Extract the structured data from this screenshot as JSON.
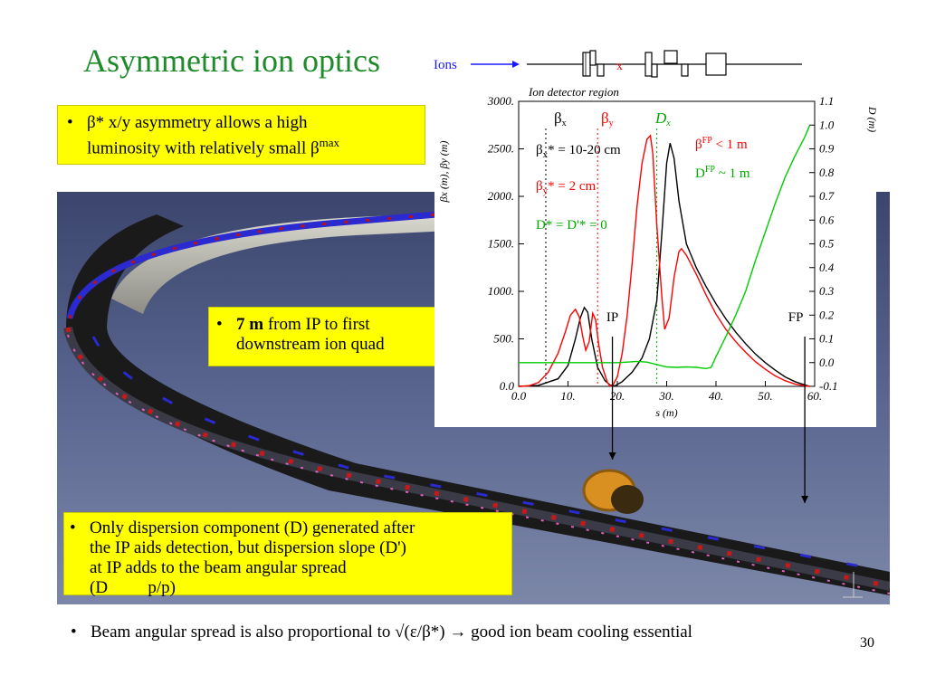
{
  "slide": {
    "title": "Asymmetric ion optics",
    "page_number": "30"
  },
  "lattice": {
    "ions_label": "Ions",
    "ip_marker": "x"
  },
  "bullets": {
    "box1_line1": "β* x/y asymmetry allows a high",
    "box1_line2_pre": "luminosity with relatively small β",
    "box1_sup": "max",
    "box2_bold": "7 m",
    "box2_line1_rest": " from IP to first",
    "box2_line2": "downstream ion quad",
    "box3_line1": "Only dispersion component (D) generated after",
    "box3_line2": "the IP aids detection, but dispersion slope (D')",
    "box3_line3": "at IP adds to the beam angular spread",
    "box3_line4": "(D\u0000\u0000\u0000p/p)",
    "footer": "Beam angular spread is also proportional to √(ε/β*) → good ion beam cooling essential"
  },
  "chart_data": {
    "type": "line",
    "header_label": "Ion detector region",
    "xlabel": "s (m)",
    "ylabel_left": "βx (m), βy (m)",
    "ylabel_right": "D (m)",
    "xlim": [
      0,
      60
    ],
    "ylim_left": [
      0,
      3000
    ],
    "ylim_right": [
      -0.1,
      1.1
    ],
    "x_ticks": [
      "0.0",
      "10.",
      "20.",
      "30.",
      "40.",
      "50.",
      "60."
    ],
    "y_left_ticks": [
      "0.0",
      "500.",
      "1000.",
      "1500.",
      "2000.",
      "2500.",
      "3000."
    ],
    "y_right_ticks": [
      "-0.1",
      "0.0",
      "0.1",
      "0.2",
      "0.3",
      "0.4",
      "0.5",
      "0.6",
      "0.7",
      "0.8",
      "0.9",
      "1.0",
      "1.1"
    ],
    "legend": [
      {
        "label": "β",
        "sub": "x",
        "color": "#000000"
      },
      {
        "label": "β",
        "sub": "y",
        "color": "#ff0000"
      },
      {
        "label": "D",
        "sub": "x",
        "color": "#00aa00"
      }
    ],
    "annotations": {
      "betax_star_pre": "β",
      "betax_star_sub": "x",
      "betax_star_rest": "* = 10-20 cm",
      "betay_star_pre": "β",
      "betay_star_sub": "y",
      "betay_star_rest": "* = 2 cm",
      "d_star": "D* = D'* = 0",
      "betafp_pre": "β",
      "betafp_sup": "FP",
      "betafp_rest": " < 1 m",
      "dfp_pre": "D",
      "dfp_sup": "FP",
      "dfp_rest": " ~ 1 m",
      "ip_label": "IP",
      "fp_label": "FP"
    },
    "colors": {
      "beta_x": "#000000",
      "beta_y": "#ff0000",
      "dispersion": "#00cc00"
    },
    "series": [
      {
        "name": "βx",
        "axis": "left",
        "x": [
          0,
          4,
          8,
          10,
          11.5,
          12.5,
          13.3,
          14,
          14.8,
          16,
          17.5,
          18.5,
          19.5,
          21,
          23,
          25,
          26.5,
          28,
          29,
          30,
          30.7,
          31.5,
          32.5,
          34,
          36,
          38,
          40,
          42,
          44,
          46,
          48,
          50,
          52,
          54,
          56,
          58,
          59
        ],
        "y": [
          0,
          10,
          80,
          220,
          500,
          720,
          830,
          780,
          500,
          200,
          60,
          15,
          5,
          50,
          150,
          300,
          500,
          900,
          1600,
          2350,
          2560,
          2400,
          1950,
          1500,
          1250,
          1050,
          870,
          710,
          570,
          450,
          340,
          250,
          170,
          100,
          50,
          15,
          0
        ]
      },
      {
        "name": "βy",
        "axis": "left",
        "x": [
          0,
          2,
          4,
          6,
          8,
          9.5,
          10.5,
          11.5,
          12.3,
          13,
          13.6,
          14.3,
          15,
          15.6,
          16.2,
          17,
          18,
          18.5,
          19,
          20,
          21,
          22,
          23,
          24,
          25,
          26,
          26.7,
          27.2,
          28,
          29,
          29.6,
          30.5,
          31.5,
          32.5,
          33,
          34,
          36,
          38,
          40,
          42,
          44,
          46,
          48,
          50,
          52,
          54,
          56,
          58,
          59
        ],
        "y": [
          0,
          5,
          40,
          150,
          350,
          580,
          750,
          810,
          730,
          520,
          380,
          470,
          770,
          700,
          450,
          200,
          40,
          5,
          5,
          100,
          350,
          750,
          1300,
          1900,
          2350,
          2600,
          2640,
          2450,
          1700,
          950,
          600,
          720,
          1150,
          1420,
          1450,
          1380,
          1180,
          960,
          760,
          600,
          470,
          360,
          260,
          180,
          110,
          60,
          25,
          5,
          0
        ]
      },
      {
        "name": "D",
        "axis": "right",
        "x": [
          0,
          5,
          10,
          15,
          20,
          22,
          24,
          26,
          28,
          30,
          32,
          34,
          36,
          38,
          39,
          40,
          42,
          44,
          46,
          48,
          50,
          52,
          54,
          56,
          58,
          59
        ],
        "y": [
          0,
          0,
          0,
          0,
          0,
          0.002,
          0.005,
          0.002,
          -0.008,
          -0.018,
          -0.02,
          -0.018,
          -0.02,
          -0.025,
          -0.02,
          0.025,
          0.11,
          0.2,
          0.3,
          0.43,
          0.55,
          0.67,
          0.78,
          0.87,
          0.95,
          1.0
        ]
      }
    ],
    "markers": {
      "ip_lines_x": [
        5.5,
        16,
        28
      ],
      "ip_position": 19,
      "fp_position": 58
    }
  }
}
